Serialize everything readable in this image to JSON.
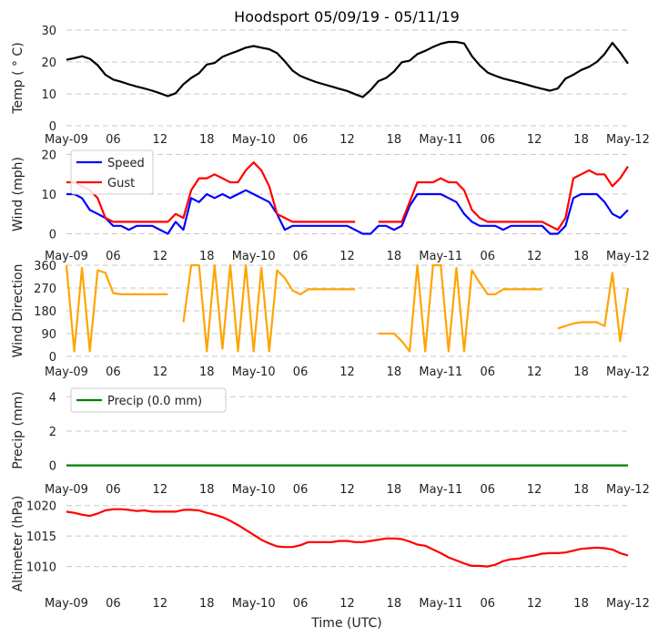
{
  "chart_data": [
    {
      "type": "line",
      "title": "Hoodsport 05/09/19 - 05/11/19",
      "xlabel": "",
      "ylabel": "Temp ( ° C)",
      "ylim": [
        0,
        30
      ],
      "yticks": [
        0,
        10,
        20,
        30
      ],
      "grid": true,
      "series": [
        {
          "color": "#000000",
          "values": [
            20.7,
            21.2,
            21.8,
            21,
            19,
            16,
            14.5,
            13.8,
            13,
            12.3,
            11.7,
            11,
            10.2,
            9.3,
            10.2,
            13,
            15,
            16.5,
            19.2,
            19.7,
            21.6,
            22.6,
            23.5,
            24.5,
            25,
            24.5,
            24,
            22.8,
            20.2,
            17.3,
            15.6,
            14.6,
            13.7,
            13,
            12.3,
            11.6,
            10.9,
            9.9,
            9,
            11.2,
            14,
            15,
            17,
            19.9,
            20.4,
            22.5,
            23.5,
            24.7,
            25.7,
            26.3,
            26.3,
            25.8,
            21.8,
            18.9,
            16.7,
            15.7,
            14.8,
            14.2,
            13.6,
            12.9,
            12.2,
            11.6,
            11,
            11.7,
            14.8,
            16,
            17.5,
            18.5,
            20,
            22.5,
            26,
            23,
            19.5
          ]
        }
      ]
    },
    {
      "type": "line",
      "ylabel": "Wind (mph)",
      "ylim": [
        -1.5,
        21.5
      ],
      "yticks": [
        0,
        10,
        20
      ],
      "grid": true,
      "legend": "top-left",
      "series": [
        {
          "name": "Speed",
          "color": "#0000ff",
          "values": [
            10,
            10,
            9,
            6,
            5,
            4,
            2,
            2,
            1,
            2,
            2,
            2,
            1,
            0,
            3,
            1,
            9,
            8,
            10,
            9,
            10,
            9,
            10,
            11,
            10,
            9,
            8,
            5,
            1,
            2,
            2,
            2,
            2,
            2,
            2,
            2,
            2,
            1,
            0,
            0,
            2,
            2,
            1,
            2,
            7,
            10,
            10,
            10,
            10,
            9,
            8,
            5,
            3,
            2,
            2,
            2,
            1,
            2,
            2,
            2,
            2,
            2,
            0,
            0,
            2,
            9,
            10,
            10,
            10,
            8,
            5,
            4,
            6
          ]
        },
        {
          "name": "Gust",
          "color": "#ff0000",
          "values": [
            13,
            13,
            12,
            11,
            9,
            4,
            3,
            3,
            3,
            3,
            3,
            3,
            3,
            3,
            5,
            4,
            11,
            14,
            14,
            15,
            14,
            13,
            13,
            16,
            18,
            16,
            12,
            5,
            4,
            3,
            3,
            3,
            3,
            3,
            3,
            3,
            3,
            3,
            null,
            null,
            3,
            3,
            3,
            3,
            8,
            13,
            13,
            13,
            14,
            13,
            13,
            11,
            6,
            4,
            3,
            3,
            3,
            3,
            3,
            3,
            3,
            3,
            2,
            1,
            4,
            14,
            15,
            16,
            15,
            15,
            12,
            14,
            17
          ]
        }
      ]
    },
    {
      "type": "line",
      "ylabel": "Wind Direction",
      "ylim": [
        0,
        360
      ],
      "yticks": [
        0,
        90,
        180,
        270,
        360
      ],
      "grid": true,
      "series": [
        {
          "color": "#ffa500",
          "values": [
            360,
            20,
            350,
            20,
            340,
            330,
            250,
            245,
            245,
            245,
            245,
            245,
            245,
            245,
            null,
            135,
            360,
            360,
            20,
            360,
            30,
            360,
            20,
            360,
            20,
            350,
            20,
            340,
            310,
            260,
            245,
            265,
            265,
            265,
            265,
            265,
            265,
            265,
            null,
            null,
            90,
            90,
            90,
            60,
            20,
            360,
            20,
            360,
            360,
            20,
            350,
            20,
            340,
            290,
            245,
            245,
            265,
            265,
            265,
            265,
            265,
            265,
            null,
            110,
            120,
            130,
            135,
            135,
            135,
            120,
            330,
            60,
            270
          ]
        }
      ]
    },
    {
      "type": "line",
      "ylabel": "Precip (mm)",
      "ylim": [
        -0.5,
        4.6
      ],
      "yticks": [
        0,
        2,
        4
      ],
      "grid": true,
      "legend": "top-left",
      "series": [
        {
          "name": "Precip (0.0 mm)",
          "color": "#008000",
          "values": [
            0,
            0,
            0,
            0,
            0,
            0,
            0,
            0,
            0,
            0,
            0,
            0,
            0,
            0,
            0,
            0,
            0,
            0,
            0,
            0,
            0,
            0,
            0,
            0,
            0,
            0,
            0,
            0,
            0,
            0,
            0,
            0,
            0,
            0,
            0,
            0,
            0,
            0,
            0,
            0,
            0,
            0,
            0,
            0,
            0,
            0,
            0,
            0,
            0,
            0,
            0,
            0,
            0,
            0,
            0,
            0,
            0,
            0,
            0,
            0,
            0,
            0,
            0,
            0,
            0,
            0,
            0,
            0,
            0,
            0,
            0,
            0,
            0
          ]
        }
      ]
    },
    {
      "type": "line",
      "xlabel": "Time (UTC)",
      "ylabel": "Altimeter (hPa)",
      "ylim": [
        1006.5,
        1021
      ],
      "yticks": [
        1010,
        1015,
        1020
      ],
      "grid": true,
      "series": [
        {
          "color": "#ff0000",
          "values": [
            1019,
            1018.8,
            1018.5,
            1018.3,
            1018.7,
            1019.2,
            1019.4,
            1019.4,
            1019.3,
            1019.1,
            1019.2,
            1019,
            1019,
            1019,
            1019,
            1019.3,
            1019.3,
            1019.2,
            1018.8,
            1018.5,
            1018.1,
            1017.5,
            1016.8,
            1016,
            1015.2,
            1014.4,
            1013.8,
            1013.3,
            1013.2,
            1013.2,
            1013.5,
            1014,
            1014,
            1014,
            1014,
            1014.2,
            1014.2,
            1014,
            1014,
            1014.2,
            1014.4,
            1014.6,
            1014.6,
            1014.5,
            1014.1,
            1013.6,
            1013.4,
            1012.8,
            1012.2,
            1011.5,
            1011,
            1010.5,
            1010.1,
            1010.1,
            1010,
            1010.3,
            1010.9,
            1011.2,
            1011.3,
            1011.6,
            1011.8,
            1012.1,
            1012.2,
            1012.2,
            1012.3,
            1012.6,
            1012.9,
            1013,
            1013.1,
            1013,
            1012.8,
            1012.2,
            1011.8
          ]
        }
      ]
    }
  ],
  "x_axis": {
    "range": [
      "2019-05-09 00:00",
      "2019-05-12 00:00"
    ],
    "time": [
      "2019-05-09 00:00",
      "2019-05-09 01:00",
      "2019-05-09 02:00",
      "2019-05-09 03:00",
      "2019-05-09 04:00",
      "2019-05-09 05:00",
      "2019-05-09 06:00",
      "2019-05-09 07:00",
      "2019-05-09 08:00",
      "2019-05-09 09:00",
      "2019-05-09 10:00",
      "2019-05-09 11:00",
      "2019-05-09 12:00",
      "2019-05-09 13:00",
      "2019-05-09 14:00",
      "2019-05-09 15:00",
      "2019-05-09 16:00",
      "2019-05-09 17:00",
      "2019-05-09 18:00",
      "2019-05-09 19:00",
      "2019-05-09 20:00",
      "2019-05-09 21:00",
      "2019-05-09 22:00",
      "2019-05-09 23:00",
      "2019-05-10 00:00",
      "2019-05-10 01:00",
      "2019-05-10 02:00",
      "2019-05-10 03:00",
      "2019-05-10 04:00",
      "2019-05-10 05:00",
      "2019-05-10 06:00",
      "2019-05-10 07:00",
      "2019-05-10 08:00",
      "2019-05-10 09:00",
      "2019-05-10 10:00",
      "2019-05-10 11:00",
      "2019-05-10 12:00",
      "2019-05-10 13:00",
      "2019-05-10 14:00",
      "2019-05-10 15:00",
      "2019-05-10 16:00",
      "2019-05-10 17:00",
      "2019-05-10 18:00",
      "2019-05-10 19:00",
      "2019-05-10 20:00",
      "2019-05-10 21:00",
      "2019-05-10 22:00",
      "2019-05-10 23:00",
      "2019-05-11 00:00",
      "2019-05-11 01:00",
      "2019-05-11 02:00",
      "2019-05-11 03:00",
      "2019-05-11 04:00",
      "2019-05-11 05:00",
      "2019-05-11 06:00",
      "2019-05-11 07:00",
      "2019-05-11 08:00",
      "2019-05-11 09:00",
      "2019-05-11 10:00",
      "2019-05-11 11:00",
      "2019-05-11 12:00",
      "2019-05-11 13:00",
      "2019-05-11 14:00",
      "2019-05-11 15:00",
      "2019-05-11 16:00",
      "2019-05-11 17:00",
      "2019-05-11 18:00",
      "2019-05-11 19:00",
      "2019-05-11 20:00",
      "2019-05-11 21:00",
      "2019-05-11 22:00",
      "2019-05-11 23:00",
      "2019-05-12 00:00"
    ],
    "tick_labels": [
      "May-09",
      "06",
      "12",
      "18",
      "May-10",
      "06",
      "12",
      "18",
      "May-11",
      "06",
      "12",
      "18",
      "May-12"
    ]
  }
}
